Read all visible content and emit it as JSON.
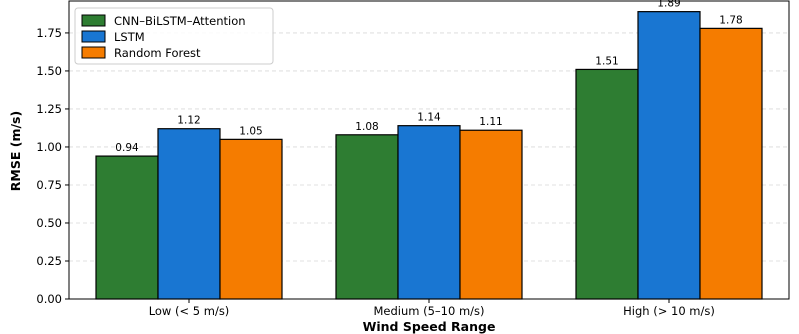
{
  "chart_data": {
    "type": "bar",
    "title": "",
    "xlabel": "Wind Speed Range",
    "ylabel": "RMSE (m/s)",
    "categories": [
      "Low (< 5 m/s)",
      "Medium (5–10 m/s)",
      "High (> 10 m/s)"
    ],
    "series": [
      {
        "name": "CNN–BiLSTM–Attention",
        "values": [
          0.94,
          1.08,
          1.51
        ],
        "labels": [
          "0.94",
          "1.08",
          "1.51"
        ],
        "color": "#2e7d32"
      },
      {
        "name": "LSTM",
        "values": [
          1.12,
          1.14,
          1.89
        ],
        "labels": [
          "1.12",
          "1.14",
          "1.89"
        ],
        "color": "#1976d2"
      },
      {
        "name": "Random Forest",
        "values": [
          1.05,
          1.11,
          1.78
        ],
        "labels": [
          "1.05",
          "1.11",
          "1.78"
        ],
        "color": "#f57c00"
      }
    ],
    "ylim": [
      0,
      1.96
    ],
    "yticks": [
      0,
      0.25,
      0.5,
      0.75,
      1.0,
      1.25,
      1.5,
      1.75
    ],
    "ytick_labels": [
      "0.00",
      "0.25",
      "0.50",
      "0.75",
      "1.00",
      "1.25",
      "1.50",
      "1.75"
    ],
    "grid": "horizontal-dashed",
    "legend_position": "top-left"
  }
}
